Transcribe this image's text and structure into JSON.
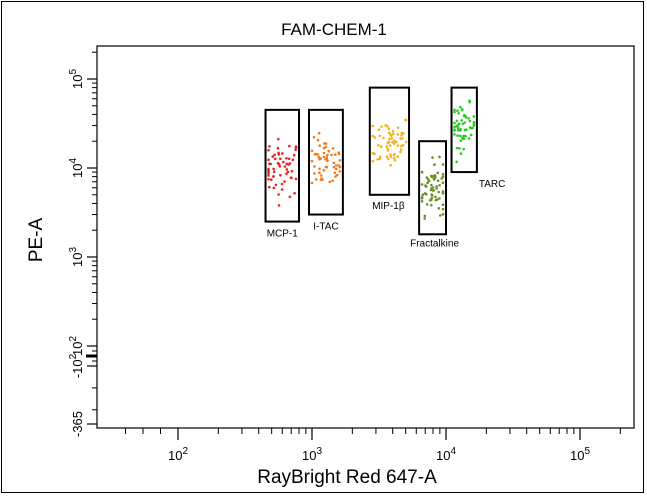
{
  "chart_data": {
    "type": "scatter",
    "title": "FAM-CHEM-1",
    "xlabel": "RayBright Red 647-A",
    "ylabel": "PE-A",
    "x_scale": "biexponential",
    "y_scale": "biexponential",
    "xlim": [
      -100,
      300000
    ],
    "ylim": [
      -365,
      250000
    ],
    "x_ticks": [
      {
        "value": 100,
        "base": "10",
        "exp": "2"
      },
      {
        "value": 1000,
        "base": "10",
        "exp": "3"
      },
      {
        "value": 10000,
        "base": "10",
        "exp": "4"
      },
      {
        "value": 100000,
        "base": "10",
        "exp": "5"
      }
    ],
    "y_ticks": [
      {
        "value": -365,
        "label": "-365"
      },
      {
        "value": -100,
        "base": "-10",
        "exp": "2"
      },
      {
        "value": 100,
        "base": "10",
        "exp": "2"
      },
      {
        "value": 1000,
        "base": "10",
        "exp": "3"
      },
      {
        "value": 10000,
        "base": "10",
        "exp": "4"
      },
      {
        "value": 100000,
        "base": "10",
        "exp": "5"
      }
    ],
    "grid": false,
    "legend": "none",
    "gates": [
      {
        "name": "MCP-1",
        "x_range": [
          450,
          800
        ],
        "y_range": [
          2500,
          45000
        ],
        "color": "#e8231f",
        "center": [
          600,
          10000
        ],
        "spread": [
          0.08,
          0.16
        ],
        "count": 60
      },
      {
        "name": "I-TAC",
        "x_range": [
          950,
          1700
        ],
        "y_range": [
          3000,
          45000
        ],
        "color": "#f07a1e",
        "center": [
          1250,
          11000
        ],
        "spread": [
          0.07,
          0.14
        ],
        "count": 55
      },
      {
        "name": "MIP-1β",
        "x_range": [
          2700,
          5300
        ],
        "y_range": [
          5000,
          80000
        ],
        "color": "#f2b21c",
        "center": [
          3800,
          20000
        ],
        "spread": [
          0.08,
          0.16
        ],
        "count": 60
      },
      {
        "name": "Fractalkine",
        "x_range": [
          6300,
          10000
        ],
        "y_range": [
          1800,
          20000
        ],
        "color": "#6b8e23",
        "center": [
          8000,
          6000
        ],
        "spread": [
          0.06,
          0.15
        ],
        "count": 65
      },
      {
        "name": "TARC",
        "x_range": [
          11000,
          17000
        ],
        "y_range": [
          9000,
          80000
        ],
        "color": "#22cc22",
        "center": [
          13500,
          30000
        ],
        "spread": [
          0.05,
          0.12
        ],
        "count": 55
      }
    ],
    "colors": {
      "MCP-1": "#e8231f",
      "I-TAC": "#f07a1e",
      "MIP-1β": "#f2b21c",
      "Fractalkine": "#6b8e23",
      "TARC": "#22cc22"
    }
  }
}
